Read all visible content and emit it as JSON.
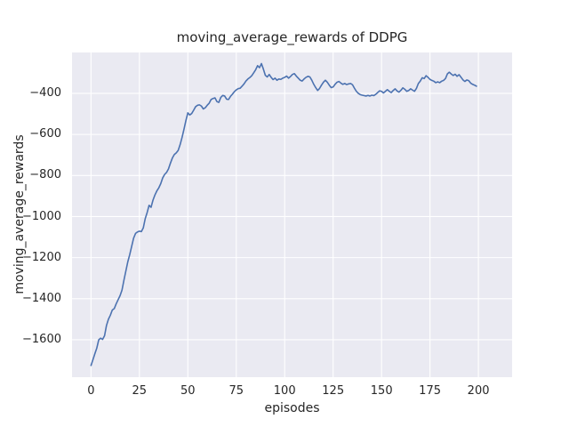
{
  "chart_data": {
    "type": "line",
    "title": "moving_average_rewards of DDPG",
    "xlabel": "episodes",
    "ylabel": "moving_average_rewards",
    "x_ticks": [
      0,
      25,
      50,
      75,
      100,
      125,
      150,
      175,
      200
    ],
    "y_ticks": [
      -400,
      -600,
      -800,
      -1000,
      -1200,
      -1400,
      -1600
    ],
    "xlim": [
      -9.8,
      217.4
    ],
    "ylim": [
      -1782,
      -201
    ],
    "grid": true,
    "legend_position": "none",
    "colors": {
      "line": "#4c72b0",
      "plot_background": "#eaeaf2",
      "gridline": "#ffffff",
      "text": "#262626",
      "figure_background": "#ffffff"
    },
    "series": [
      {
        "name": "moving_average_rewards",
        "x_start": 0,
        "x_step": 1,
        "values": [
          -1725,
          -1697,
          -1668,
          -1640,
          -1600,
          -1592,
          -1598,
          -1580,
          -1530,
          -1500,
          -1480,
          -1455,
          -1448,
          -1425,
          -1405,
          -1385,
          -1358,
          -1310,
          -1265,
          -1220,
          -1185,
          -1145,
          -1105,
          -1082,
          -1075,
          -1071,
          -1073,
          -1055,
          -1010,
          -980,
          -945,
          -955,
          -920,
          -895,
          -875,
          -860,
          -840,
          -812,
          -795,
          -785,
          -768,
          -740,
          -715,
          -698,
          -690,
          -678,
          -650,
          -615,
          -575,
          -532,
          -495,
          -505,
          -498,
          -482,
          -465,
          -458,
          -456,
          -462,
          -476,
          -470,
          -458,
          -448,
          -430,
          -425,
          -422,
          -440,
          -444,
          -420,
          -410,
          -413,
          -428,
          -430,
          -415,
          -404,
          -392,
          -383,
          -377,
          -375,
          -365,
          -354,
          -340,
          -330,
          -323,
          -314,
          -300,
          -285,
          -265,
          -275,
          -255,
          -282,
          -312,
          -320,
          -308,
          -322,
          -333,
          -326,
          -336,
          -330,
          -332,
          -326,
          -322,
          -316,
          -326,
          -318,
          -308,
          -304,
          -316,
          -326,
          -336,
          -340,
          -330,
          -322,
          -317,
          -320,
          -336,
          -356,
          -372,
          -386,
          -376,
          -360,
          -346,
          -336,
          -346,
          -360,
          -372,
          -369,
          -356,
          -346,
          -342,
          -350,
          -356,
          -352,
          -357,
          -354,
          -352,
          -358,
          -375,
          -390,
          -400,
          -406,
          -409,
          -411,
          -413,
          -410,
          -413,
          -409,
          -411,
          -405,
          -396,
          -388,
          -390,
          -398,
          -390,
          -382,
          -390,
          -396,
          -386,
          -378,
          -388,
          -394,
          -385,
          -373,
          -380,
          -390,
          -386,
          -378,
          -384,
          -390,
          -376,
          -352,
          -340,
          -324,
          -328,
          -314,
          -322,
          -332,
          -337,
          -341,
          -348,
          -344,
          -348,
          -341,
          -337,
          -328,
          -305,
          -297,
          -306,
          -313,
          -307,
          -317,
          -309,
          -321,
          -334,
          -342,
          -335,
          -338,
          -350,
          -356,
          -360,
          -365
        ]
      }
    ]
  }
}
